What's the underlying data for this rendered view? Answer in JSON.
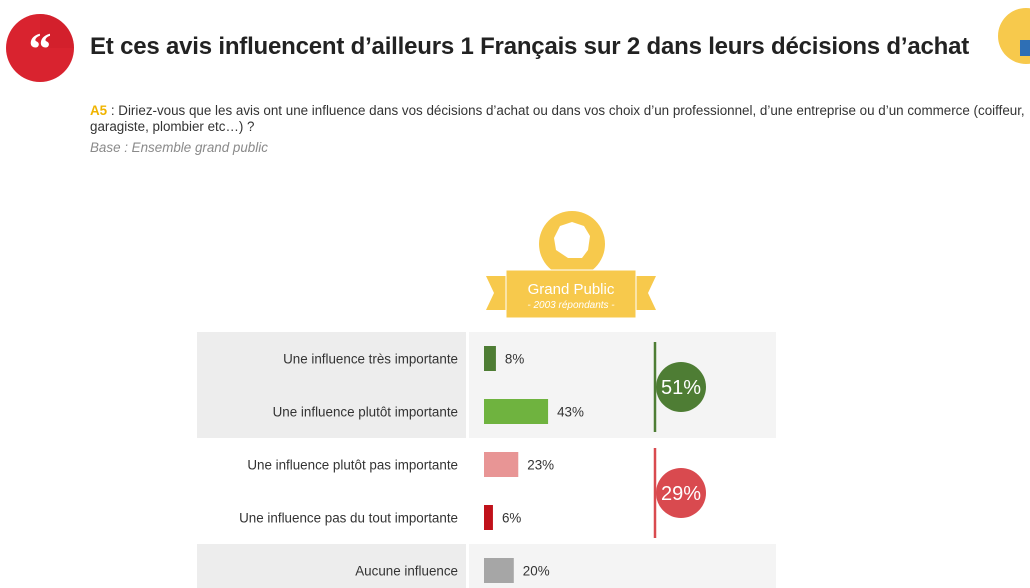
{
  "header": {
    "quote_icon": "quote-icon",
    "title": "Et ces avis influencent d’ailleurs 1 Français sur 2 dans leurs décisions d’achat",
    "corner_icon": "france-map-icon"
  },
  "question": {
    "code": "A5",
    "text": " : Diriez-vous que les avis ont une influence dans vos décisions d’achat ou dans vos choix d’un professionnel, d’une entreprise ou d’un commerce (coiffeur, garagiste, plombier etc…) ?",
    "base": "Base : Ensemble grand public"
  },
  "badge": {
    "title": "Grand Public",
    "subtitle": "- 2003 répondants -",
    "icon": "france-map-icon"
  },
  "colors": {
    "dark_green": "#4e7d34",
    "light_green": "#6fb33f",
    "pink": "#e89595",
    "dark_red": "#c0111a",
    "gray": "#a6a6a6",
    "gold": "#f7c94c",
    "circle_red": "#d94a4f"
  },
  "chart_data": {
    "type": "bar",
    "orientation": "horizontal",
    "categories": [
      "Une influence très importante",
      "Une influence plutôt importante",
      "Une influence plutôt pas importante",
      "Une influence pas du tout importante",
      "Aucune influence"
    ],
    "values": [
      8,
      43,
      23,
      6,
      20
    ],
    "value_labels": [
      "8%",
      "43%",
      "23%",
      "6%",
      "20%"
    ],
    "bar_colors": [
      "#4e7d34",
      "#6fb33f",
      "#e89595",
      "#c0111a",
      "#a6a6a6"
    ],
    "groups": [
      {
        "label": "51%",
        "value": 51,
        "rows": [
          0,
          1
        ],
        "color": "#4e7d34"
      },
      {
        "label": "29%",
        "value": 29,
        "rows": [
          2,
          3
        ],
        "color": "#d94a4f"
      }
    ]
  }
}
